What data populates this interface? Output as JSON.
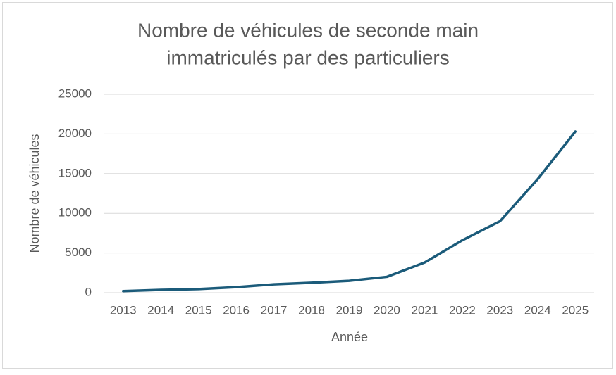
{
  "chart_data": {
    "type": "line",
    "title": [
      "Nombre de véhicules de seconde main",
      "immatriculés par des particuliers"
    ],
    "x_label": "Année",
    "y_label": "Nombre de véhicules",
    "categories": [
      "2013",
      "2014",
      "2015",
      "2016",
      "2017",
      "2018",
      "2019",
      "2020",
      "2021",
      "2022",
      "2023",
      "2024",
      "2025"
    ],
    "series": [
      {
        "name": "Nombre de véhicules",
        "color": "#1b5b7a",
        "values": [
          200,
          350,
          450,
          700,
          1050,
          1250,
          1500,
          2000,
          3800,
          6600,
          9000,
          14300,
          20300
        ]
      }
    ],
    "ylim": [
      0,
      25000
    ],
    "yticks": [
      0,
      5000,
      10000,
      15000,
      20000,
      25000
    ],
    "grid": true
  }
}
